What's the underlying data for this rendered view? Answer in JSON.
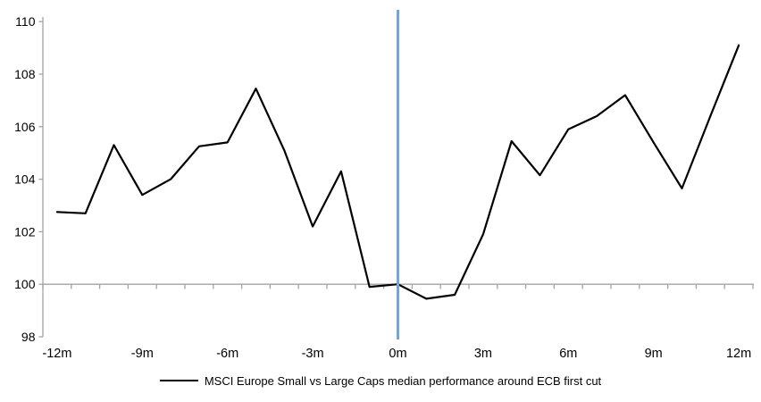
{
  "chart_data": {
    "type": "line",
    "title": "",
    "xlabel": "",
    "ylabel": "",
    "x_unit": "months around ECB first cut",
    "x": [
      -12,
      -11,
      -10,
      -9,
      -8,
      -7,
      -6,
      -5,
      -4,
      -3,
      -2,
      -1,
      0,
      1,
      2,
      3,
      4,
      5,
      6,
      7,
      8,
      9,
      10,
      11,
      12
    ],
    "series": [
      {
        "name": "MSCI Europe Small vs Large Caps median performance around ECB first cut",
        "color": "#000000",
        "values": [
          102.75,
          102.7,
          105.3,
          103.4,
          104.0,
          105.25,
          105.4,
          107.45,
          105.1,
          102.2,
          104.3,
          99.9,
          100.0,
          99.45,
          99.6,
          101.9,
          105.45,
          104.15,
          105.9,
          106.4,
          107.2,
          105.4,
          103.65,
          106.4,
          109.1
        ]
      }
    ],
    "x_tick_labels": [
      "-12m",
      "-9m",
      "-6m",
      "-3m",
      "0m",
      "3m",
      "6m",
      "9m",
      "12m"
    ],
    "x_tick_months": [
      -12,
      -9,
      -6,
      -3,
      0,
      3,
      6,
      9,
      12
    ],
    "y_ticks": [
      98,
      100,
      102,
      104,
      106,
      108,
      110
    ],
    "ylim": [
      98,
      110
    ],
    "baseline": 100,
    "event_line": {
      "x": 0,
      "color": "#7ca2d1"
    },
    "axis_color": "#a3a3a3",
    "grid": "off",
    "legend_position": "bottom",
    "legend": "MSCI Europe Small vs Large Caps median performance around ECB first cut"
  }
}
